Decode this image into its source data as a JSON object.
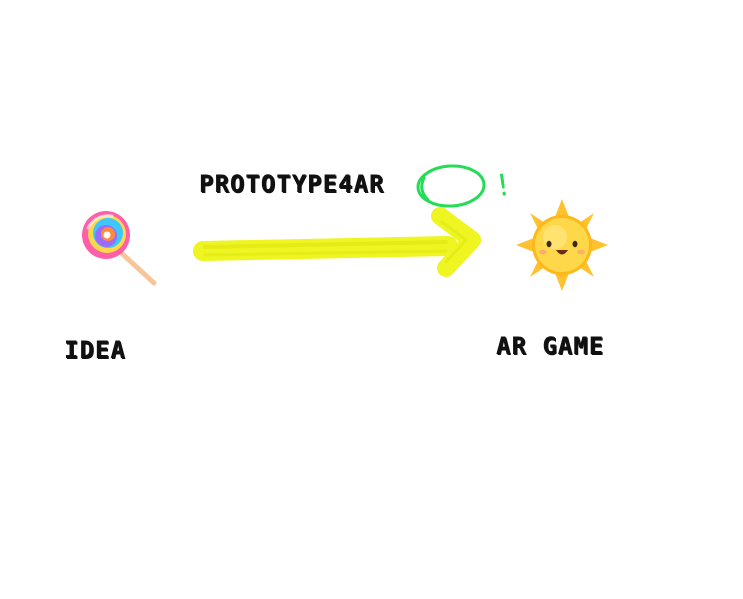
{
  "canvas": {
    "background": "#ffffff",
    "title": "PROTOTYPE4AR",
    "exclamation": "!",
    "start_label": "IDEA",
    "end_label": "AR GAME"
  },
  "icons": {
    "start": "lollipop-icon",
    "end": "smiling-sun-icon"
  },
  "colors": {
    "arrow": "#eef520",
    "circle_mark": "#22dd55",
    "text": "#111111"
  }
}
